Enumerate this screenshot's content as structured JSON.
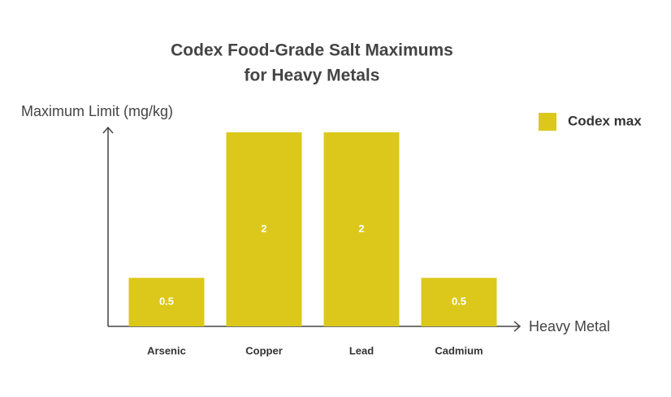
{
  "chart_data": {
    "type": "bar",
    "title": [
      "Codex Food-Grade Salt Maximums",
      "for Heavy Metals"
    ],
    "y_label": "Maximum Limit (mg/kg)",
    "x_label": "Heavy Metal",
    "categories": [
      "Arsenic",
      "Copper",
      "Lead",
      "Cadmium"
    ],
    "series": [
      {
        "name": "Codex max",
        "color": "#dcc81a",
        "values": [
          0.5,
          2,
          2,
          0.5
        ]
      }
    ],
    "ylim": [
      0,
      2
    ],
    "legend": "top-right"
  }
}
